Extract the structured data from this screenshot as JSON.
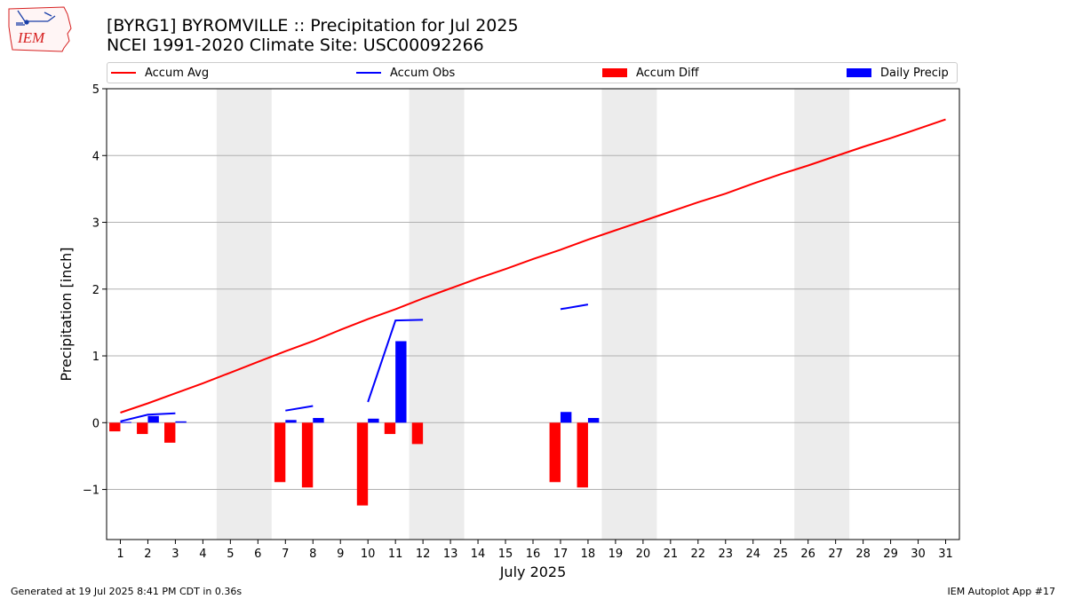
{
  "header": {
    "title_line1": "[BYRG1] BYROMVILLE :: Precipitation for Jul 2025",
    "title_line2": "NCEI 1991-2020 Climate Site: USC00092266",
    "logo_text": "IEM"
  },
  "footer": {
    "generated": "Generated at 19 Jul 2025 8:41 PM CDT in 0.36s",
    "app": "IEM Autoplot App #17"
  },
  "chart_data": {
    "type": "bar",
    "xlabel": "July 2025",
    "ylabel": "Precipitation [inch]",
    "xlim": [
      0.5,
      31.5
    ],
    "ylim": [
      -1.75,
      5.0
    ],
    "yticks": [
      -1,
      0,
      1,
      2,
      3,
      4,
      5
    ],
    "ytick_labels": [
      "−1",
      "0",
      "1",
      "2",
      "3",
      "4",
      "5"
    ],
    "xticks": [
      1,
      2,
      3,
      4,
      5,
      6,
      7,
      8,
      9,
      10,
      11,
      12,
      13,
      14,
      15,
      16,
      17,
      18,
      19,
      20,
      21,
      22,
      23,
      24,
      25,
      26,
      27,
      28,
      29,
      30,
      31
    ],
    "grid": "y",
    "legend_position": "top",
    "weekend_spans": [
      [
        4.5,
        6.5
      ],
      [
        11.5,
        13.5
      ],
      [
        18.5,
        20.5
      ],
      [
        25.5,
        27.5
      ]
    ],
    "colors": {
      "avg": "#ff0000",
      "obs": "#0000ff",
      "diff": "#ff0000",
      "daily": "#0000ff",
      "weekend": "#ececec",
      "grid": "#b0b0b0"
    },
    "series": [
      {
        "name": "Accum Avg",
        "kind": "line",
        "x": [
          1,
          2,
          3,
          4,
          5,
          6,
          7,
          8,
          9,
          10,
          11,
          12,
          13,
          14,
          15,
          16,
          17,
          18,
          19,
          20,
          21,
          22,
          23,
          24,
          25,
          26,
          27,
          28,
          29,
          30,
          31
        ],
        "values": [
          0.15,
          0.29,
          0.44,
          0.59,
          0.75,
          0.91,
          1.07,
          1.22,
          1.39,
          1.55,
          1.7,
          1.86,
          2.01,
          2.16,
          2.3,
          2.45,
          2.59,
          2.74,
          2.88,
          3.02,
          3.16,
          3.3,
          3.43,
          3.58,
          3.72,
          3.85,
          3.99,
          4.13,
          4.26,
          4.4,
          4.54
        ]
      },
      {
        "name": "Accum Obs",
        "kind": "line",
        "x": [
          1,
          2,
          3,
          4,
          5,
          6,
          7,
          8,
          9,
          10,
          11,
          12,
          13,
          14,
          15,
          16,
          17,
          18,
          19,
          20,
          21,
          22,
          23,
          24,
          25,
          26,
          27,
          28,
          29,
          30,
          31
        ],
        "values": [
          0.02,
          0.12,
          0.14,
          null,
          null,
          null,
          0.18,
          0.25,
          null,
          0.31,
          1.53,
          1.54,
          null,
          null,
          null,
          null,
          1.7,
          1.77,
          null,
          null,
          null,
          null,
          null,
          null,
          null,
          null,
          null,
          null,
          null,
          null,
          null
        ]
      },
      {
        "name": "Accum Diff",
        "kind": "bar",
        "x": [
          1,
          2,
          3,
          7,
          8,
          10,
          11,
          12,
          17,
          18
        ],
        "values": [
          -0.13,
          -0.17,
          -0.3,
          -0.89,
          -0.97,
          -1.24,
          -0.17,
          -0.32,
          -0.89,
          -0.97
        ]
      },
      {
        "name": "Daily Precip",
        "kind": "bar",
        "x": [
          1,
          2,
          3,
          7,
          8,
          10,
          11,
          17,
          18
        ],
        "values": [
          0.01,
          0.1,
          0.02,
          0.04,
          0.07,
          0.06,
          1.22,
          0.16,
          0.07
        ]
      }
    ]
  }
}
